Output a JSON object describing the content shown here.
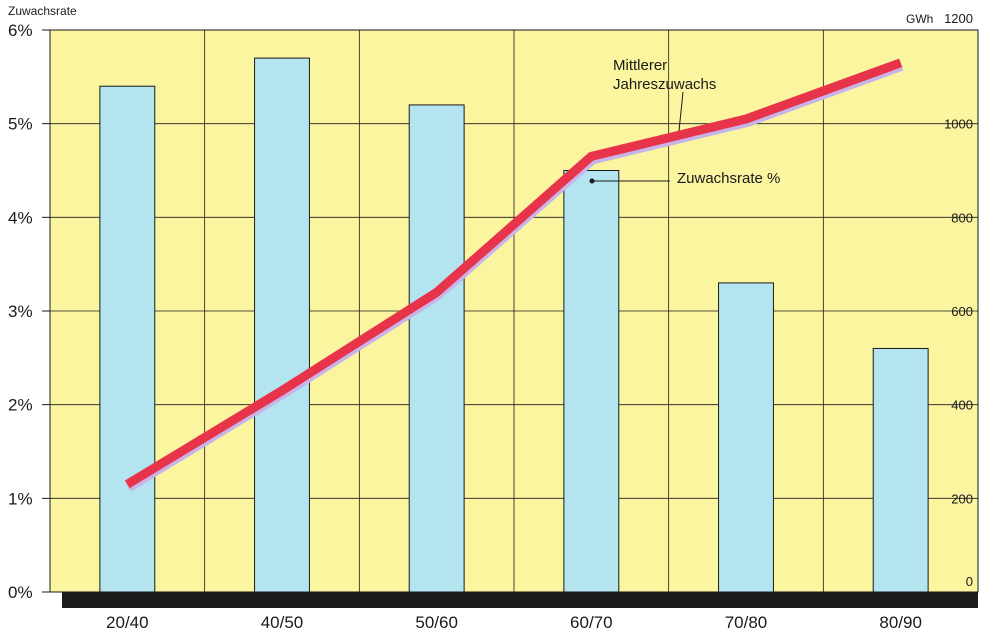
{
  "chart_data": {
    "type": "bar",
    "categories": [
      "20/40",
      "40/50",
      "50/60",
      "60/70",
      "70/80",
      "80/90"
    ],
    "series": [
      {
        "values": [
          5.4,
          5.7,
          5.2,
          4.5,
          3.3,
          2.6
        ],
        "axis": "left",
        "color": "#b4e4f0"
      },
      {
        "values": [
          230,
          430,
          640,
          930,
          1010,
          1130
        ],
        "axis": "right",
        "mark": "line",
        "color": "#e8344a"
      }
    ],
    "left_axis": {
      "label": "Zuwachsrate",
      "ylim": [
        0,
        6
      ],
      "ticks": [
        "0%",
        "1%",
        "2%",
        "3%",
        "4%",
        "5%",
        "6%"
      ]
    },
    "right_axis": {
      "unit": "GWh",
      "ylim": [
        0,
        1200
      ],
      "ticks": [
        "0",
        "200",
        "400",
        "600",
        "800",
        "1000",
        "1200"
      ]
    },
    "annotations": [
      {
        "text": "Mittlerer",
        "text2": "Jahreszuwachs"
      },
      {
        "text": "Zuwachsrate %"
      }
    ],
    "grid": true,
    "background_color": "#fbf5a0"
  }
}
